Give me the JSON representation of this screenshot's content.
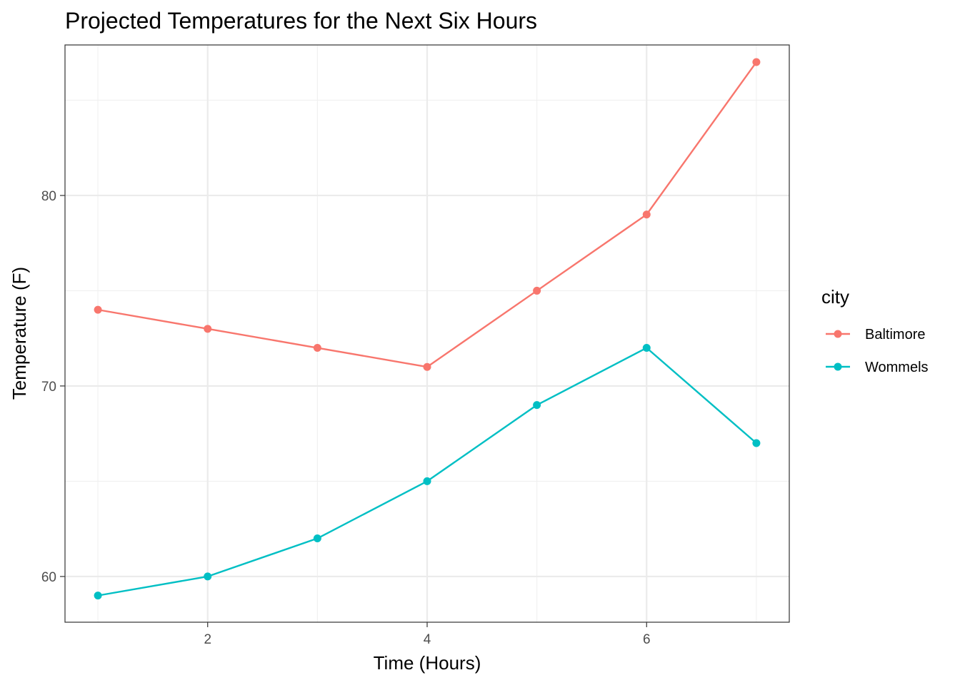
{
  "chart_data": {
    "type": "line",
    "title": "Projected Temperatures for the Next Six Hours",
    "xlabel": "Time (Hours)",
    "ylabel": "Temperature (F)",
    "x": [
      1,
      2,
      3,
      4,
      5,
      6,
      7
    ],
    "xlim": [
      0.7,
      7.3
    ],
    "ylim": [
      57.6,
      87.9
    ],
    "x_ticks": [
      2,
      4,
      6
    ],
    "y_ticks": [
      60,
      70,
      80
    ],
    "x_minor_ticks": [
      1,
      3,
      5,
      7
    ],
    "y_minor_ticks": [
      65,
      75,
      85
    ],
    "grid": true,
    "legend": {
      "title": "city",
      "position": "right"
    },
    "series": [
      {
        "name": "Baltimore",
        "color": "#F8766D",
        "values": [
          74,
          73,
          72,
          71,
          75,
          79,
          87
        ]
      },
      {
        "name": "Wommels",
        "color": "#00BFC4",
        "values": [
          59,
          60,
          62,
          65,
          69,
          72,
          67
        ]
      }
    ]
  }
}
